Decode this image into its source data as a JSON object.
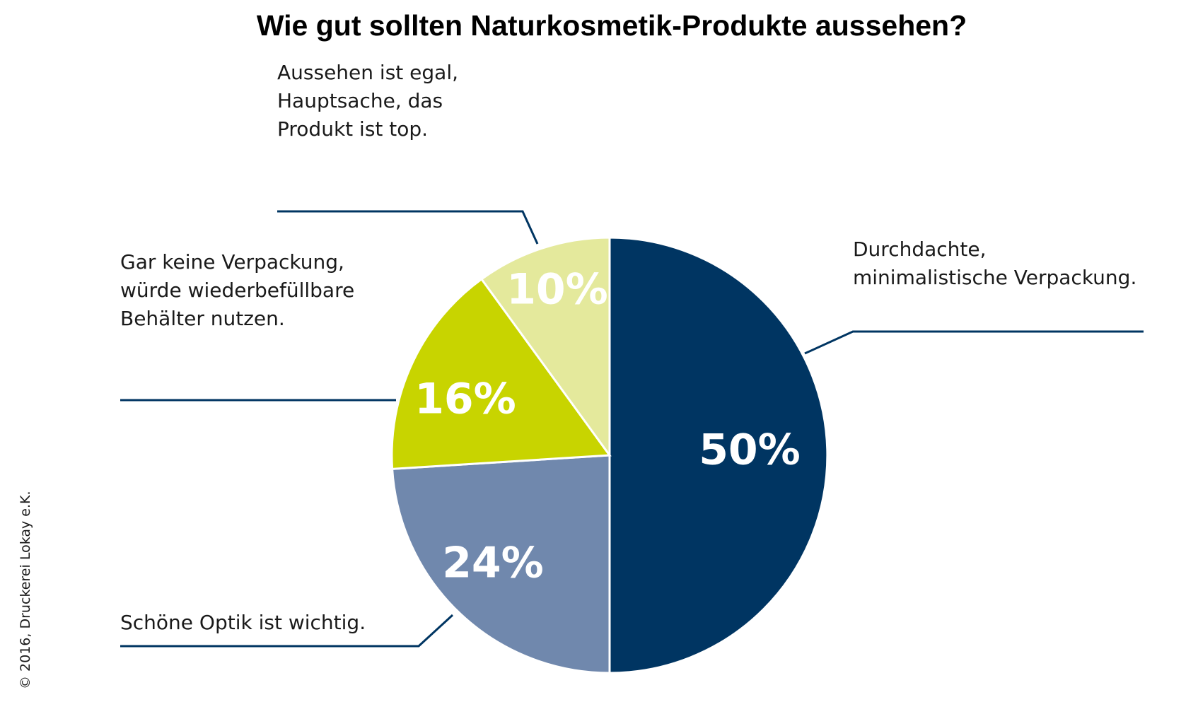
{
  "chart_data": {
    "type": "pie",
    "title": "Wie gut sollten Naturkosmetik-Produkte aussehen?",
    "unit": "%",
    "slices": [
      {
        "label": [
          "Durchdachte,",
          "minimalistische Verpackung."
        ],
        "value": 50,
        "display": "50%",
        "color": "#003562"
      },
      {
        "label": [
          "Schöne Optik ist wichtig."
        ],
        "value": 24,
        "display": "24%",
        "color": "#7088ad"
      },
      {
        "label": [
          "Gar keine Verpackung,",
          "würde wiederbefüllbare",
          "Behälter nutzen."
        ],
        "value": 16,
        "display": "16%",
        "color": "#c8d400"
      },
      {
        "label": [
          "Aussehen ist egal,",
          "Hauptsache, das",
          "Produkt ist top."
        ],
        "value": 10,
        "display": "10%",
        "color": "#e4e99c"
      }
    ],
    "start": "12 o'clock, clockwise"
  },
  "leader_color": "#003562",
  "footer": {
    "copyright": "© 2016, Druckerei Lokay e.K."
  }
}
